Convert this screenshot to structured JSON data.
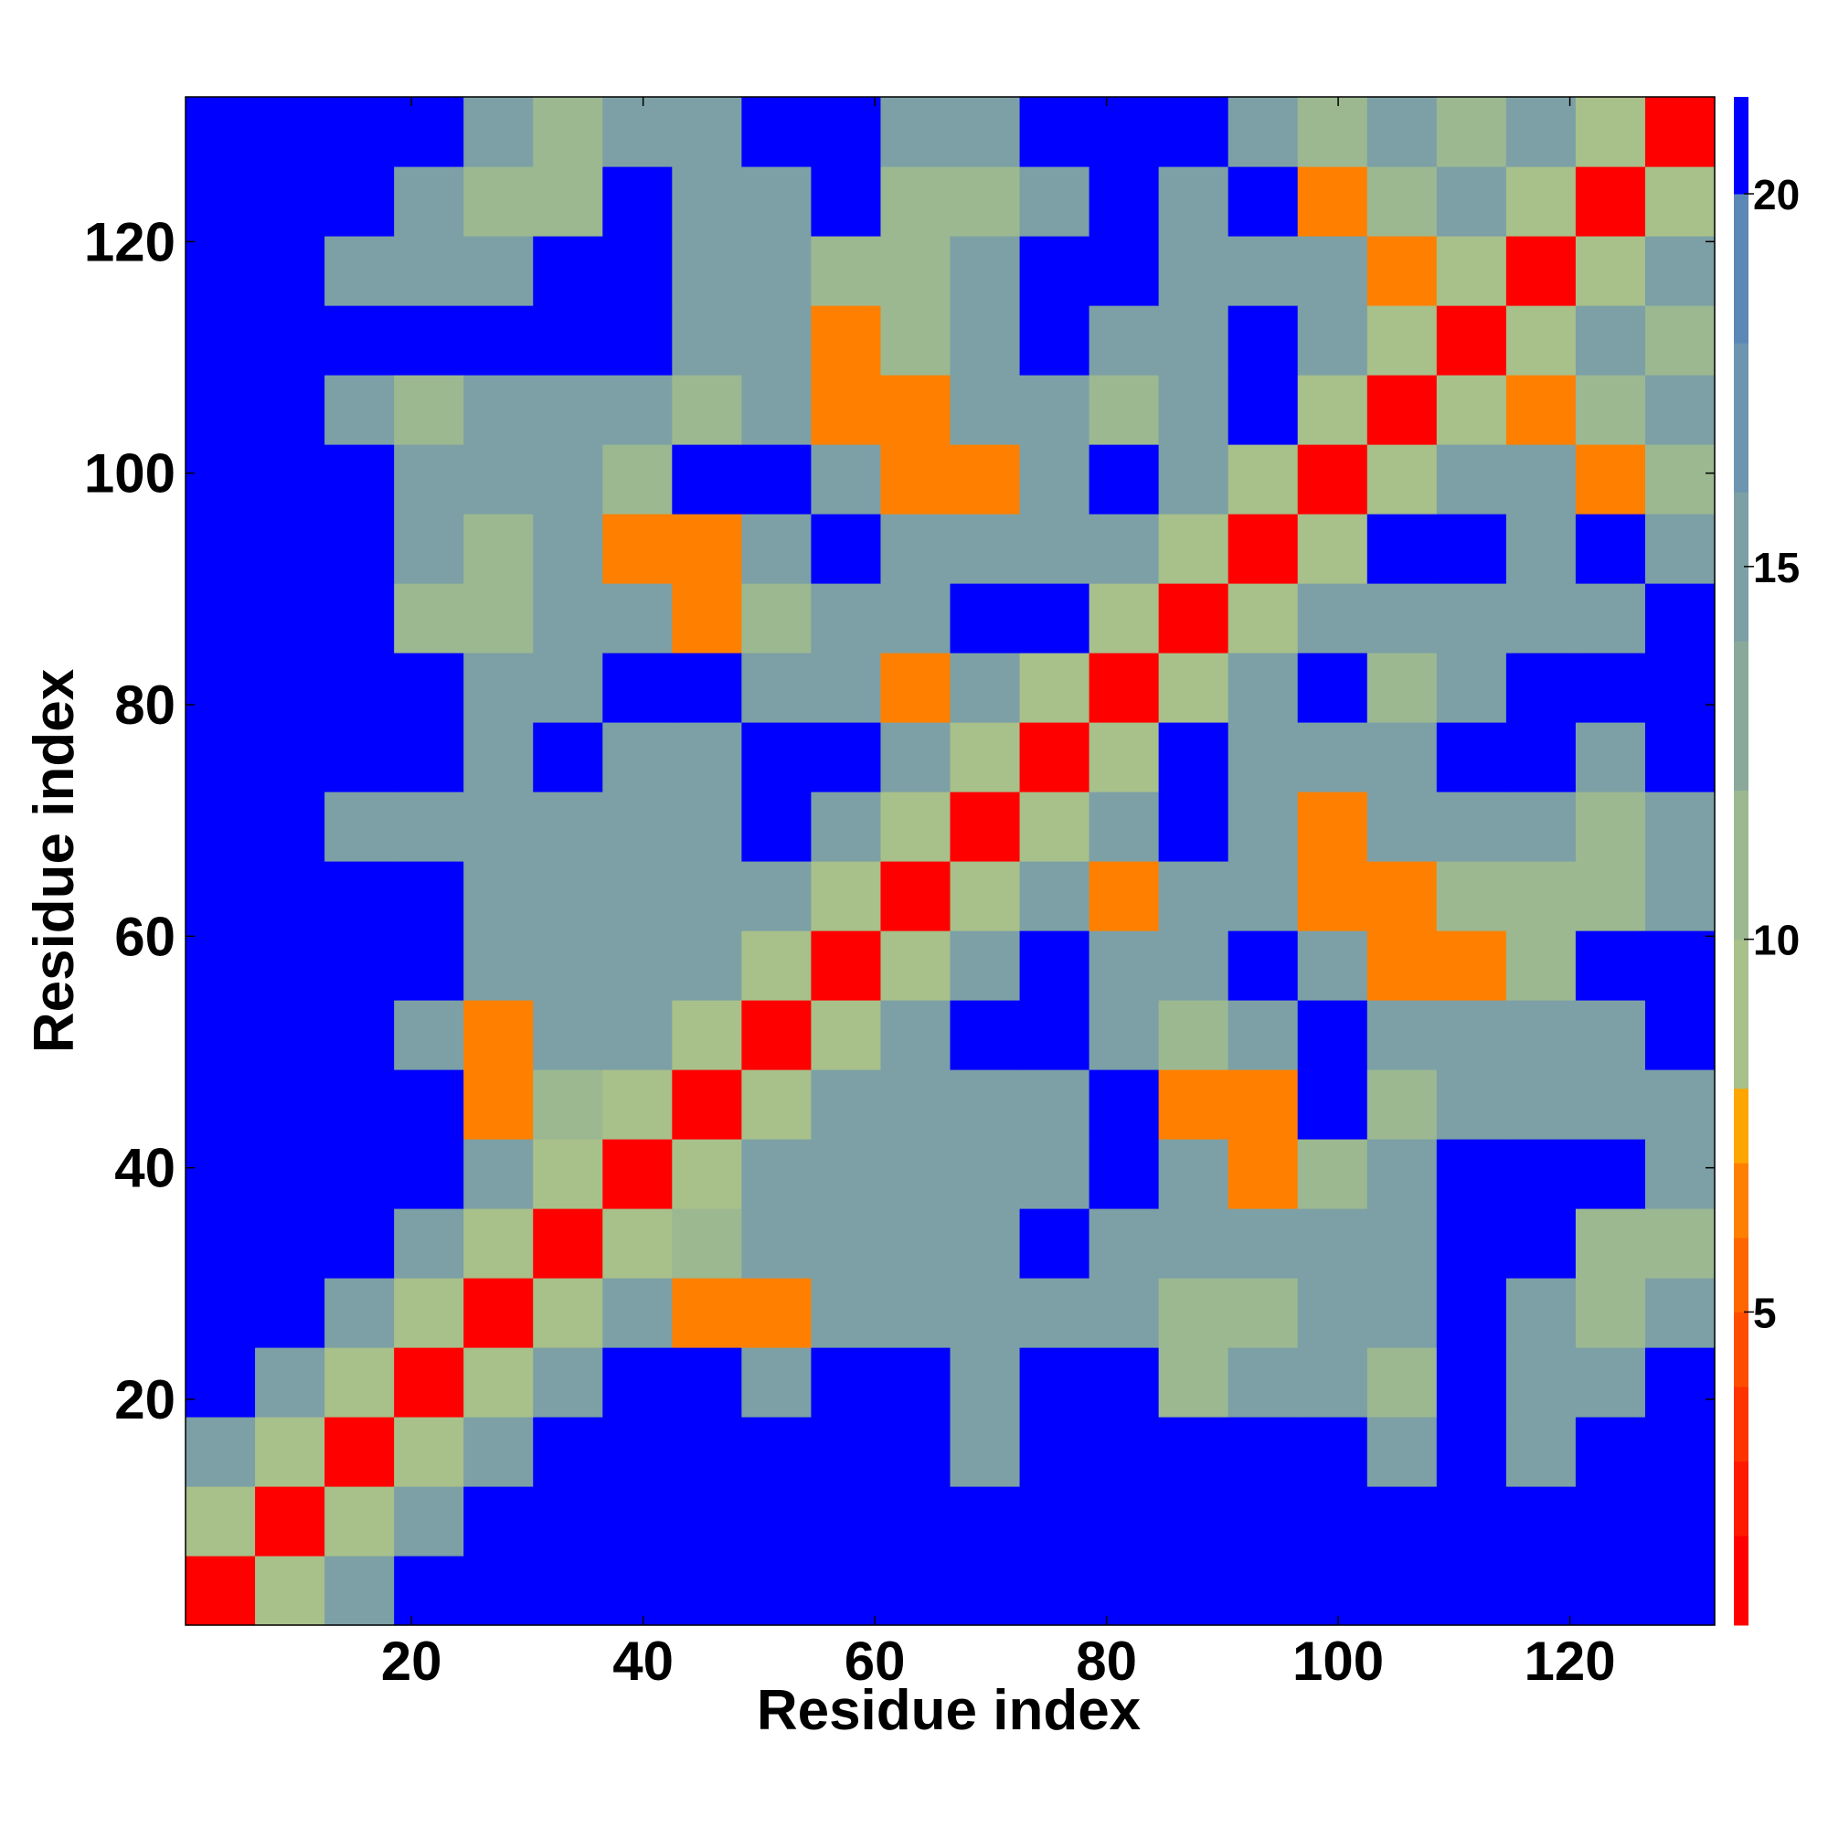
{
  "chart_data": {
    "type": "heatmap",
    "xlabel": "Residue index",
    "ylabel": "Residue index",
    "x_edges": [
      0.5,
      6.5,
      12.5,
      18.5,
      24.5,
      30.5,
      36.5,
      42.5,
      48.5,
      54.5,
      60.5,
      66.5,
      72.5,
      78.5,
      84.5,
      90.5,
      96.5,
      102.5,
      108.5,
      114.5,
      120.5,
      126.5,
      132.5
    ],
    "y_edges": [
      0.5,
      6.5,
      12.5,
      18.5,
      24.5,
      30.5,
      36.5,
      42.5,
      48.5,
      54.5,
      60.5,
      66.5,
      72.5,
      78.5,
      84.5,
      90.5,
      96.5,
      102.5,
      108.5,
      114.5,
      120.5,
      126.5,
      132.5
    ],
    "xlim": [
      0.5,
      132.5
    ],
    "ylim": [
      0.5,
      132.5
    ],
    "xticks": [
      20,
      40,
      60,
      80,
      100,
      120
    ],
    "yticks": [
      20,
      40,
      60,
      80,
      100,
      120
    ],
    "z": [
      [
        2,
        9,
        16,
        21,
        21,
        21,
        21,
        21,
        21,
        21,
        21,
        21,
        21,
        21,
        21,
        21,
        21,
        21,
        21,
        21,
        21,
        21
      ],
      [
        9,
        2,
        9,
        16,
        21,
        21,
        21,
        21,
        21,
        21,
        21,
        21,
        21,
        21,
        21,
        21,
        21,
        21,
        21,
        21,
        21,
        21
      ],
      [
        16,
        9,
        2,
        9,
        16,
        21,
        21,
        21,
        21,
        21,
        21,
        16,
        21,
        21,
        21,
        21,
        21,
        16,
        21,
        16,
        21,
        21
      ],
      [
        21,
        16,
        9,
        2,
        9,
        16,
        21,
        21,
        16,
        21,
        21,
        16,
        21,
        21,
        12,
        16,
        16,
        12,
        21,
        16,
        16,
        21
      ],
      [
        21,
        21,
        16,
        9,
        2,
        9,
        16,
        7,
        7,
        16,
        16,
        16,
        16,
        16,
        12,
        12,
        16,
        16,
        21,
        16,
        12,
        16
      ],
      [
        21,
        21,
        21,
        16,
        9,
        2,
        9,
        12,
        16,
        16,
        16,
        16,
        21,
        16,
        16,
        16,
        16,
        16,
        21,
        21,
        12,
        12
      ],
      [
        21,
        21,
        21,
        21,
        16,
        9,
        2,
        9,
        16,
        16,
        16,
        16,
        16,
        21,
        16,
        7,
        12,
        16,
        21,
        21,
        21,
        16
      ],
      [
        21,
        21,
        21,
        21,
        7,
        12,
        9,
        2,
        9,
        16,
        16,
        16,
        16,
        21,
        7,
        7,
        21,
        12,
        16,
        16,
        16,
        16
      ],
      [
        21,
        21,
        21,
        16,
        7,
        16,
        16,
        9,
        2,
        9,
        16,
        21,
        21,
        16,
        12,
        16,
        21,
        16,
        16,
        16,
        16,
        21
      ],
      [
        21,
        21,
        21,
        21,
        16,
        16,
        16,
        16,
        9,
        2,
        9,
        16,
        21,
        16,
        16,
        21,
        16,
        7,
        7,
        12,
        21,
        21
      ],
      [
        21,
        21,
        21,
        21,
        16,
        16,
        16,
        16,
        16,
        9,
        2,
        9,
        16,
        7,
        16,
        16,
        7,
        7,
        12,
        12,
        12,
        16
      ],
      [
        21,
        21,
        16,
        16,
        16,
        16,
        16,
        16,
        21,
        16,
        9,
        2,
        9,
        16,
        21,
        16,
        7,
        16,
        16,
        16,
        12,
        16
      ],
      [
        21,
        21,
        21,
        21,
        16,
        21,
        16,
        16,
        21,
        21,
        16,
        9,
        2,
        9,
        21,
        16,
        16,
        16,
        21,
        21,
        16,
        21
      ],
      [
        21,
        21,
        21,
        21,
        16,
        16,
        21,
        21,
        16,
        16,
        7,
        16,
        9,
        2,
        9,
        16,
        21,
        12,
        16,
        21,
        21,
        21
      ],
      [
        21,
        21,
        21,
        12,
        12,
        16,
        16,
        7,
        12,
        16,
        16,
        21,
        21,
        9,
        2,
        9,
        16,
        16,
        16,
        16,
        16,
        21
      ],
      [
        21,
        21,
        21,
        16,
        12,
        16,
        7,
        7,
        16,
        21,
        16,
        16,
        16,
        16,
        9,
        2,
        9,
        21,
        21,
        16,
        21,
        16
      ],
      [
        21,
        21,
        21,
        16,
        16,
        16,
        12,
        21,
        21,
        16,
        7,
        7,
        16,
        21,
        16,
        9,
        2,
        9,
        16,
        16,
        7,
        12
      ],
      [
        21,
        21,
        16,
        12,
        16,
        16,
        16,
        12,
        16,
        7,
        7,
        16,
        16,
        12,
        16,
        21,
        9,
        2,
        9,
        7,
        12,
        16
      ],
      [
        21,
        21,
        21,
        21,
        21,
        21,
        21,
        16,
        16,
        7,
        12,
        16,
        21,
        16,
        16,
        21,
        16,
        9,
        2,
        9,
        16,
        12
      ],
      [
        21,
        21,
        16,
        16,
        16,
        21,
        21,
        16,
        16,
        12,
        12,
        16,
        21,
        21,
        16,
        16,
        16,
        7,
        9,
        2,
        9,
        16
      ],
      [
        21,
        21,
        21,
        16,
        12,
        12,
        21,
        16,
        16,
        21,
        12,
        12,
        16,
        21,
        16,
        21,
        7,
        12,
        16,
        9,
        2,
        9
      ],
      [
        21,
        21,
        21,
        21,
        16,
        12,
        16,
        16,
        21,
        21,
        16,
        16,
        21,
        21,
        21,
        16,
        12,
        16,
        12,
        16,
        9,
        2
      ]
    ],
    "colorbar": {
      "lim": [
        0.8,
        21.3
      ],
      "ticks": [
        5,
        10,
        15,
        20
      ],
      "bounds": [
        0.8,
        2,
        3,
        4,
        5,
        6,
        7,
        8,
        10,
        12,
        14,
        16,
        18,
        20,
        21.3
      ],
      "colors": [
        "#ff0000",
        "#ff1a00",
        "#ff3300",
        "#ff4d00",
        "#ff6600",
        "#ff8000",
        "#ffa500",
        "#a8c08a",
        "#9cb890",
        "#8aa99b",
        "#7ca0a6",
        "#6d95b0",
        "#5c88b8",
        "#0000ff"
      ]
    }
  }
}
